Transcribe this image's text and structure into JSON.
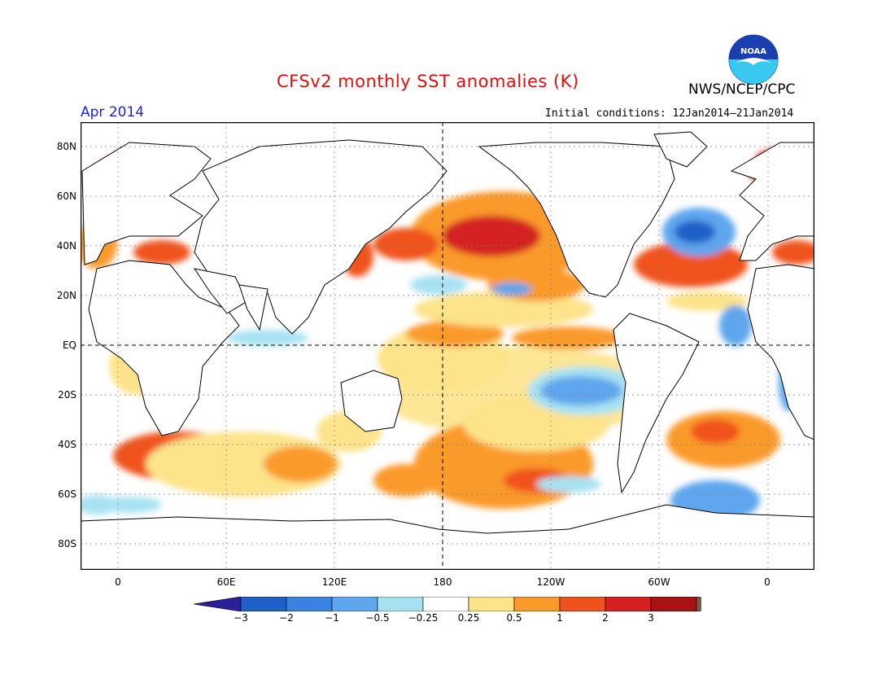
{
  "header": {
    "title": "CFSv2 monthly SST anomalies (K)",
    "month": "Apr 2014",
    "initial_conditions": "Initial conditions: 12Jan2014–21Jan2014",
    "agency": "NWS/NCEP/CPC",
    "logo_text": "NOAA"
  },
  "map": {
    "y_ticks": [
      "80N",
      "60N",
      "40N",
      "20N",
      "EQ",
      "20S",
      "40S",
      "60S",
      "80S"
    ],
    "x_ticks": [
      "0",
      "60E",
      "120E",
      "180",
      "120W",
      "60W",
      "0"
    ]
  },
  "colorbar": {
    "labels": [
      "−3",
      "−2",
      "−1",
      "−0.5",
      "−0.25",
      "0.25",
      "0.5",
      "1",
      "2",
      "3"
    ],
    "colors": [
      "#2a1f9a",
      "#1e60c8",
      "#3a82e0",
      "#5fa6ee",
      "#a8e2f2",
      "#ffffff",
      "#fde38a",
      "#fa9a2a",
      "#f0521e",
      "#d42020",
      "#a81212",
      "#7a5a48"
    ]
  },
  "colors": {
    "title": "#e01010",
    "month": "#2020e0",
    "noaa_blue": "#1a3fb0",
    "noaa_cyan": "#38c8f0"
  }
}
